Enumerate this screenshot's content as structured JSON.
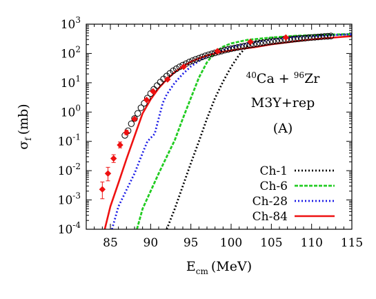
{
  "chart_data": {
    "type": "line",
    "title": "",
    "xlabel": "E",
    "xlabel_sub": "cm",
    "xlabel_unit": "(MeV)",
    "ylabel": "σ",
    "ylabel_sub": "f",
    "ylabel_unit": "(mb)",
    "xlim": [
      82,
      115
    ],
    "ylim": [
      0.0001,
      1000
    ],
    "yscale": "log",
    "grid": false,
    "legend_position": "bottom-right",
    "x_ticks": [
      {
        "value": 85,
        "label": "85"
      },
      {
        "value": 90,
        "label": "90"
      },
      {
        "value": 95,
        "label": "95"
      },
      {
        "value": 100,
        "label": "100"
      },
      {
        "value": 105,
        "label": "105"
      },
      {
        "value": 110,
        "label": "110"
      },
      {
        "value": 115,
        "label": "115"
      }
    ],
    "y_ticks": [
      {
        "value": 0.0001,
        "base": "10",
        "exp": "-4"
      },
      {
        "value": 0.001,
        "base": "10",
        "exp": "-3"
      },
      {
        "value": 0.01,
        "base": "10",
        "exp": "-2"
      },
      {
        "value": 0.1,
        "base": "10",
        "exp": "-1"
      },
      {
        "value": 1,
        "base": "10",
        "exp": "0"
      },
      {
        "value": 10,
        "base": "10",
        "exp": "1"
      },
      {
        "value": 100,
        "base": "10",
        "exp": "2"
      },
      {
        "value": 1000,
        "base": "10",
        "exp": "3"
      }
    ],
    "annotations": {
      "reaction": {
        "mass1": "40",
        "el1": "Ca + ",
        "mass2": "96",
        "el2": "Zr"
      },
      "potential": "M3Y+rep",
      "panel": "(A)"
    },
    "series": [
      {
        "name": "Ch-1",
        "color": "#000000",
        "style": "dotted",
        "x": [
          92.0,
          93,
          94,
          95,
          96,
          97,
          98,
          99,
          100,
          101,
          102,
          103,
          105,
          108,
          111,
          115
        ],
        "y": [
          0.0001,
          0.0005,
          0.003,
          0.018,
          0.1,
          0.6,
          3,
          11,
          35,
          90,
          180,
          260,
          340,
          390,
          420,
          450
        ]
      },
      {
        "name": "Ch-6",
        "color": "#22cc22",
        "style": "dashed",
        "x": [
          88.3,
          89,
          90,
          91,
          92,
          93,
          94,
          95,
          96,
          97,
          98,
          99,
          100,
          102,
          105,
          108,
          111,
          115
        ],
        "y": [
          0.0001,
          0.0005,
          0.002,
          0.008,
          0.03,
          0.11,
          0.6,
          3,
          15,
          50,
          110,
          170,
          220,
          290,
          350,
          400,
          430,
          460
        ]
      },
      {
        "name": "Ch-28",
        "color": "#1a1ae6",
        "style": "dotted",
        "x": [
          85.2,
          86,
          87,
          88,
          89,
          89.6,
          90,
          90.5,
          91,
          91.5,
          92,
          93,
          94,
          95,
          96,
          97,
          98,
          99,
          100,
          102,
          105,
          108,
          111,
          115
        ],
        "y": [
          0.0001,
          0.0006,
          0.0022,
          0.008,
          0.04,
          0.1,
          0.13,
          0.18,
          0.6,
          2,
          4,
          10,
          20,
          36,
          55,
          80,
          105,
          130,
          160,
          220,
          300,
          360,
          410,
          450
        ]
      },
      {
        "name": "Ch-84",
        "color": "#ee1111",
        "style": "solid",
        "x": [
          84.3,
          85,
          86,
          87,
          88,
          89,
          90,
          91,
          92,
          93,
          94,
          95,
          96,
          97,
          98,
          99,
          100,
          101,
          102,
          103,
          105,
          108,
          111,
          115
        ],
        "y": [
          0.0001,
          0.0006,
          0.0038,
          0.025,
          0.15,
          0.9,
          2.7,
          6.5,
          13,
          23,
          36,
          52,
          68,
          85,
          100,
          115,
          128,
          140,
          152,
          165,
          205,
          260,
          320,
          390
        ]
      }
    ],
    "markers_open": {
      "name": "",
      "x": [
        86.8,
        87.2,
        87.6,
        88.0,
        88.4,
        88.8,
        89.2,
        89.6,
        90.0,
        90.4,
        90.8,
        91.2,
        91.6,
        92.0,
        92.4,
        92.8,
        93.2,
        93.6,
        94.0,
        94.4,
        94.8,
        95.2,
        95.6,
        96.0,
        96.4,
        96.8,
        97.2,
        97.6,
        98.0,
        98.4,
        98.8,
        99.2,
        99.6,
        100.0,
        100.4,
        100.8,
        101.2,
        101.6,
        102.0,
        102.4,
        102.8,
        103.2,
        103.6,
        104.0,
        104.4,
        104.8,
        105.2,
        105.6,
        106.0,
        106.4,
        106.8,
        107.2,
        107.6,
        108.0,
        108.4,
        108.8,
        109.2,
        109.6,
        110.0,
        110.4,
        110.8,
        111.2,
        111.6,
        112.0,
        112.4
      ],
      "y": [
        0.16,
        0.23,
        0.4,
        0.6,
        0.9,
        1.4,
        2.0,
        3.0,
        4.3,
        6.0,
        8.0,
        10.5,
        13.5,
        17,
        21,
        25.5,
        30,
        35,
        40,
        45,
        51,
        57,
        63,
        69,
        76,
        83,
        90,
        97,
        105,
        113,
        121,
        129,
        137,
        145,
        153,
        161,
        170,
        178,
        186,
        195,
        204,
        213,
        222,
        231,
        240,
        248,
        257,
        265,
        273,
        281,
        289,
        297,
        305,
        313,
        320,
        328,
        335,
        343,
        350,
        358,
        365,
        372,
        380,
        387,
        395
      ]
    },
    "markers_filled": {
      "name": "",
      "x": [
        84.0,
        84.7,
        85.4,
        86.2,
        87.0,
        88.0,
        89.5,
        90.3,
        92.1,
        94.1,
        98.3,
        102.4,
        106.8
      ],
      "y": [
        0.0023,
        0.008,
        0.026,
        0.075,
        0.2,
        0.58,
        2.6,
        5.1,
        13,
        35,
        120,
        250,
        350
      ],
      "yerr_low": [
        0.0012,
        0.0035,
        0.007,
        0.015,
        0.03,
        0.05,
        0,
        0,
        0,
        0,
        0,
        0,
        0
      ],
      "yerr_high": [
        0.0018,
        0.005,
        0.009,
        0.02,
        0.04,
        0.06,
        0,
        0,
        0,
        0,
        0,
        0,
        0
      ]
    }
  }
}
